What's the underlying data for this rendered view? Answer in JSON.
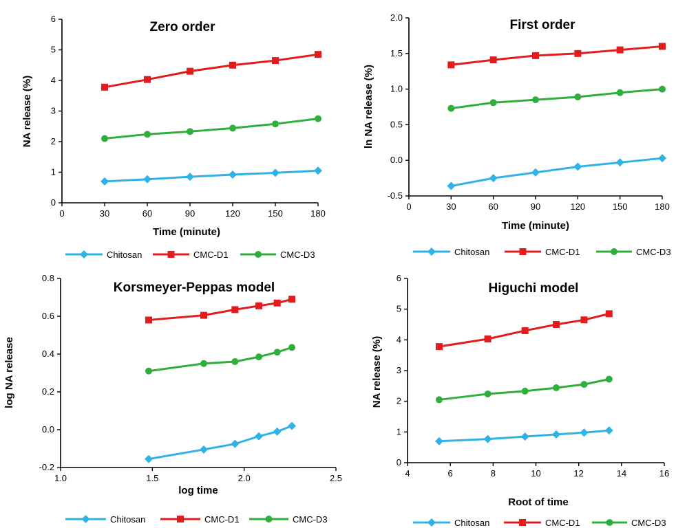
{
  "colors": {
    "Chitosan": "#2fb2e6",
    "CMC-D1": "#e21c1c",
    "CMC-D3": "#2fae3c"
  },
  "chart_data": [
    {
      "type": "line",
      "title": "Zero order",
      "xlabel": "Time (minute)",
      "ylabel": "NA release (%)",
      "xlim": [
        0,
        180
      ],
      "ylim": [
        0,
        6
      ],
      "xticks": [
        "0",
        "30",
        "60",
        "90",
        "120",
        "150",
        "180"
      ],
      "yticks": [
        "0",
        "1",
        "2",
        "3",
        "4",
        "5",
        "6"
      ],
      "x": [
        30,
        60,
        90,
        120,
        150,
        180
      ],
      "series": [
        {
          "name": "Chitosan",
          "marker": "diamond",
          "values": [
            0.7,
            0.77,
            0.85,
            0.92,
            0.98,
            1.05
          ]
        },
        {
          "name": "CMC-D1",
          "marker": "square",
          "values": [
            3.78,
            4.03,
            4.3,
            4.5,
            4.65,
            4.85
          ]
        },
        {
          "name": "CMC-D3",
          "marker": "circle",
          "values": [
            2.1,
            2.24,
            2.33,
            2.44,
            2.58,
            2.75
          ]
        }
      ],
      "legend": "bottom"
    },
    {
      "type": "line",
      "title": "First order",
      "xlabel": "Time (minute)",
      "ylabel": "ln NA release (%)",
      "xlim": [
        0,
        180
      ],
      "ylim": [
        -0.5,
        2.0
      ],
      "xticks": [
        "0",
        "30",
        "60",
        "90",
        "120",
        "150",
        "180"
      ],
      "yticks": [
        "-0.5",
        "0.0",
        "0.5",
        "1.0",
        "1.5",
        "2.0"
      ],
      "x": [
        30,
        60,
        90,
        120,
        150,
        180
      ],
      "series": [
        {
          "name": "Chitosan",
          "marker": "diamond",
          "values": [
            -0.36,
            -0.25,
            -0.17,
            -0.09,
            -0.03,
            0.03
          ]
        },
        {
          "name": "CMC-D1",
          "marker": "square",
          "values": [
            1.34,
            1.41,
            1.47,
            1.5,
            1.55,
            1.6
          ]
        },
        {
          "name": "CMC-D3",
          "marker": "circle",
          "values": [
            0.73,
            0.81,
            0.85,
            0.89,
            0.95,
            1.0
          ]
        }
      ],
      "legend": "bottom"
    },
    {
      "type": "line",
      "title": "Korsmeyer-Peppas model",
      "xlabel": "log time",
      "ylabel": "log NA release",
      "xlim": [
        1.0,
        2.5
      ],
      "ylim": [
        -0.2,
        0.8
      ],
      "xticks": [
        "1.0",
        "1.5",
        "2.0",
        "2.5"
      ],
      "yticks": [
        "-0.2",
        "0.0",
        "0.2",
        "0.4",
        "0.6",
        "0.8"
      ],
      "x": [
        1.48,
        1.78,
        1.95,
        2.08,
        2.18,
        2.26
      ],
      "series": [
        {
          "name": "Chitosan",
          "marker": "diamond",
          "values": [
            -0.155,
            -0.105,
            -0.075,
            -0.035,
            -0.01,
            0.02
          ]
        },
        {
          "name": "CMC-D1",
          "marker": "square",
          "values": [
            0.58,
            0.605,
            0.635,
            0.655,
            0.67,
            0.69
          ]
        },
        {
          "name": "CMC-D3",
          "marker": "circle",
          "values": [
            0.31,
            0.35,
            0.36,
            0.385,
            0.41,
            0.435
          ]
        }
      ],
      "legend": "bottom"
    },
    {
      "type": "line",
      "title": "Higuchi model",
      "xlabel": "Root of time",
      "ylabel": "NA release (%)",
      "xlim": [
        4,
        16
      ],
      "ylim": [
        0,
        6
      ],
      "xticks": [
        "4",
        "6",
        "8",
        "10",
        "12",
        "14",
        "16"
      ],
      "yticks": [
        "0",
        "1",
        "2",
        "3",
        "4",
        "5",
        "6"
      ],
      "x": [
        5.48,
        7.75,
        9.49,
        10.95,
        12.25,
        13.42
      ],
      "series": [
        {
          "name": "Chitosan",
          "marker": "diamond",
          "values": [
            0.7,
            0.77,
            0.85,
            0.92,
            0.98,
            1.05
          ]
        },
        {
          "name": "CMC-D1",
          "marker": "square",
          "values": [
            3.78,
            4.03,
            4.3,
            4.5,
            4.65,
            4.85
          ]
        },
        {
          "name": "CMC-D3",
          "marker": "circle",
          "values": [
            2.05,
            2.24,
            2.33,
            2.44,
            2.55,
            2.72
          ]
        }
      ],
      "legend": "bottom"
    }
  ]
}
